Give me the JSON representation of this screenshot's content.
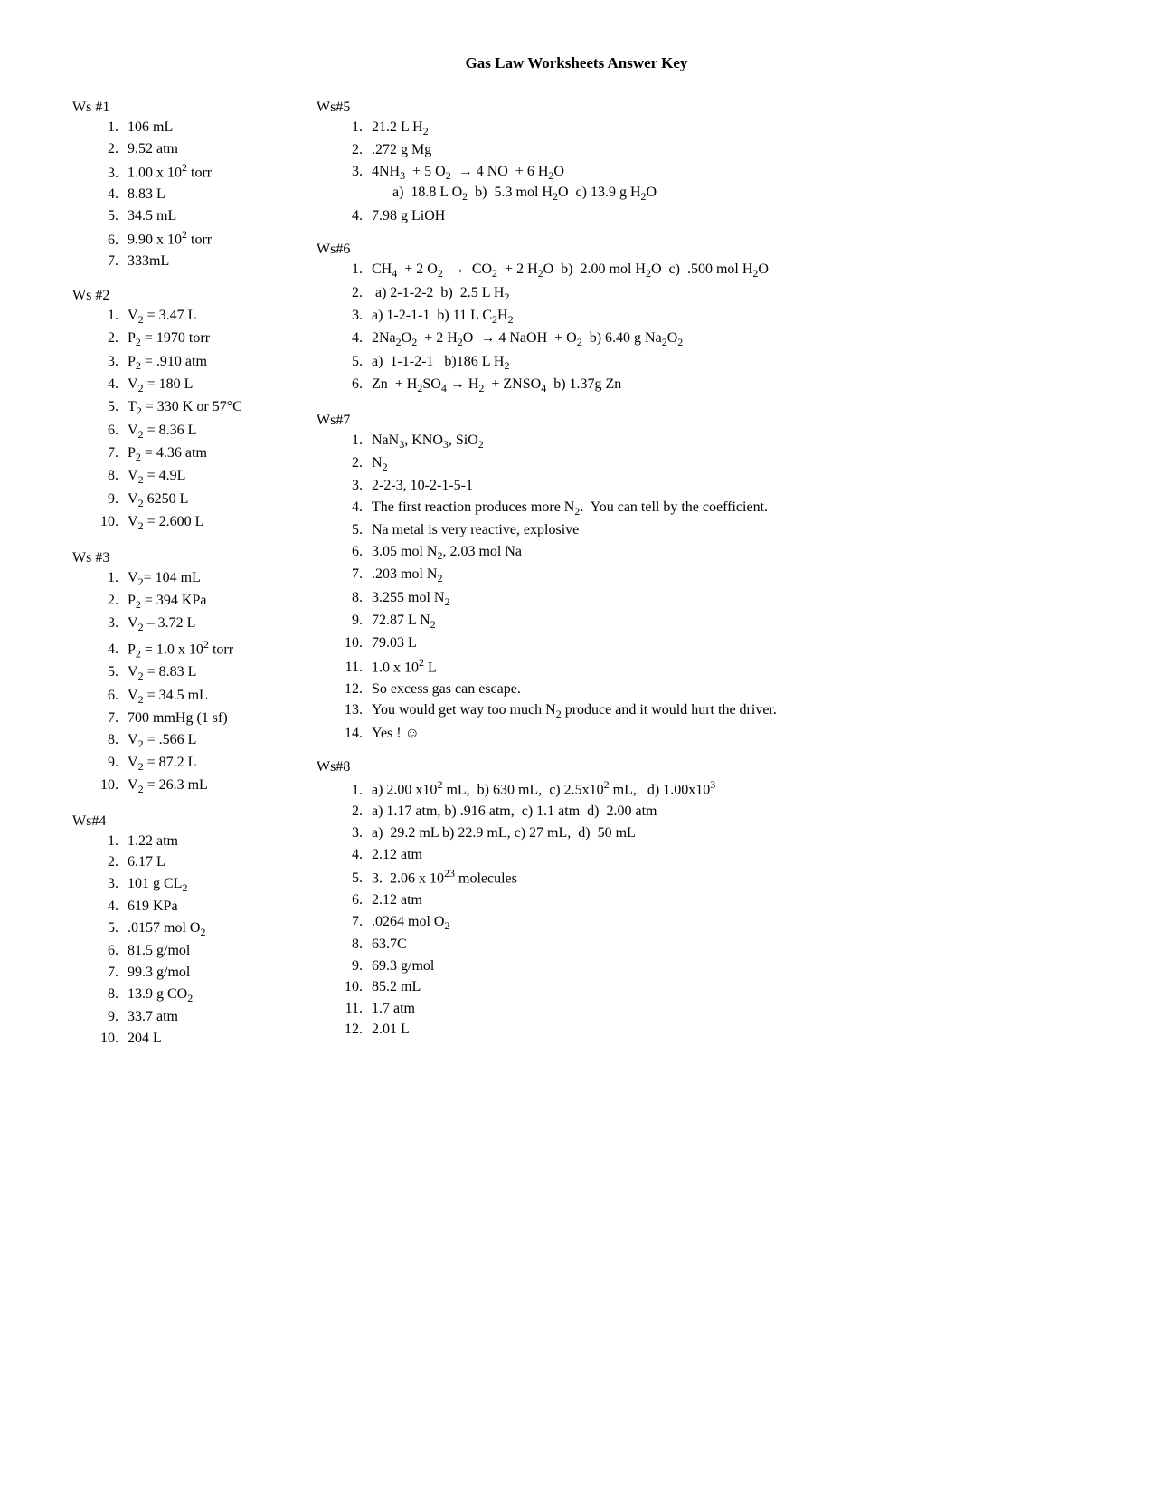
{
  "title": "Gas Law Worksheets Answer Key",
  "left_sections": [
    {
      "heading": "Ws #1",
      "items": [
        {
          "html": "106 mL"
        },
        {
          "html": "9.52 atm"
        },
        {
          "html": "1.00 x 10<sup>2</sup> torr"
        },
        {
          "html": "8.83 L"
        },
        {
          "html": "34.5 mL"
        },
        {
          "html": "9.90 x 10<sup>2</sup> torr"
        },
        {
          "html": "333mL"
        }
      ]
    },
    {
      "heading": "Ws #2",
      "items": [
        {
          "html": "V<sub>2</sub> = 3.47 L"
        },
        {
          "html": "P<sub>2</sub> = 1970 torr"
        },
        {
          "html": "P<sub>2</sub> = .910 atm"
        },
        {
          "html": "V<sub>2</sub> = 180 L"
        },
        {
          "html": "T<sub>2</sub> = 330 K or 57°C"
        },
        {
          "html": "V<sub>2</sub> = 8.36 L"
        },
        {
          "html": "P<sub>2</sub> = 4.36 atm"
        },
        {
          "html": "V<sub>2</sub> = 4.9L"
        },
        {
          "html": "V<sub>2</sub> 6250 L"
        },
        {
          "html": "V<sub>2</sub> = 2.600 L"
        }
      ]
    },
    {
      "heading": "Ws #3",
      "items": [
        {
          "html": "V<sub>2</sub>= 104 mL"
        },
        {
          "html": "P<sub>2</sub> = 394 KPa"
        },
        {
          "html": "V<sub>2</sub> – 3.72 L"
        },
        {
          "html": "P<sub>2</sub> = 1.0 x 10<sup>2</sup> torr"
        },
        {
          "html": "V<sub>2</sub> = 8.83 L"
        },
        {
          "html": "V<sub>2</sub> = 34.5 mL"
        },
        {
          "html": "700 mmHg (1 sf)"
        },
        {
          "html": "V<sub>2</sub> = .566 L"
        },
        {
          "html": "V<sub>2</sub> = 87.2 L"
        },
        {
          "html": "V<sub>2</sub> = 26.3 mL"
        }
      ]
    },
    {
      "heading": "Ws#4",
      "items": [
        {
          "html": "1.22 atm"
        },
        {
          "html": "6.17 L"
        },
        {
          "html": "101 g CL<sub>2</sub>"
        },
        {
          "html": "619 KPa"
        },
        {
          "html": ".0157 mol O<sub>2</sub>"
        },
        {
          "html": "81.5 g/mol"
        },
        {
          "html": "99.3 g/mol"
        },
        {
          "html": "13.9 g CO<sub>2</sub>"
        },
        {
          "html": "33.7 atm"
        },
        {
          "html": "204 L"
        }
      ]
    }
  ],
  "right_sections": [
    {
      "heading": "Ws#5",
      "items": [
        {
          "html": "21.2 L H<sub>2</sub>"
        },
        {
          "html": ".272 g Mg"
        },
        {
          "html": "4NH<sub>3</sub>&nbsp; + 5 O<sub>2</sub>&nbsp; → 4 NO&nbsp; + 6 H<sub>2</sub>O",
          "sub": "a)&nbsp; 18.8 L O<sub>2</sub>&nbsp; b)&nbsp; 5.3 mol H<sub>2</sub>O&nbsp; c) 13.9 g H<sub>2</sub>O"
        },
        {
          "html": "7.98 g LiOH"
        }
      ]
    },
    {
      "heading": "Ws#6",
      "items": [
        {
          "html": "CH<sub>4</sub>&nbsp; + 2 O<sub>2</sub>&nbsp; →&nbsp; CO<sub>2</sub>&nbsp; + 2 H<sub>2</sub>O&nbsp; b)&nbsp; 2.00 mol H<sub>2</sub>O&nbsp; c)&nbsp; .500 mol H<sub>2</sub>O"
        },
        {
          "html": "&nbsp;a) 2-1-2-2&nbsp; b)&nbsp; 2.5 L H<sub>2</sub>"
        },
        {
          "html": "a) 1-2-1-1&nbsp; b) 11 L C<sub>2</sub>H<sub>2</sub>"
        },
        {
          "html": "2Na<sub>2</sub>O<sub>2</sub>&nbsp; + 2 H<sub>2</sub>O&nbsp; → 4 NaOH&nbsp; + O<sub>2</sub>&nbsp; b) 6.40 g Na<sub>2</sub>O<sub>2</sub>"
        },
        {
          "html": "a)&nbsp; 1-1-2-1&nbsp;&nbsp; b)186 L H<sub>2</sub>"
        },
        {
          "html": "Zn&nbsp; + H<sub>2</sub>SO<sub>4</sub> → H<sub>2</sub>&nbsp; + ZNSO<sub>4</sub>&nbsp; b) 1.37g Zn"
        }
      ]
    },
    {
      "heading": "Ws#7",
      "items": [
        {
          "html": "NaN<sub>3</sub>, KNO<sub>3</sub>, SiO<sub>2</sub>"
        },
        {
          "html": "N<sub>2</sub>"
        },
        {
          "html": "2-2-3, 10-2-1-5-1"
        },
        {
          "html": "The first reaction produces more N<sub>2</sub>.&nbsp; You can tell by the coefficient."
        },
        {
          "html": "Na metal is very reactive, explosive"
        },
        {
          "html": "3.05 mol N<sub>2</sub>, 2.03 mol Na"
        },
        {
          "html": ".203 mol N<sub>2</sub>"
        },
        {
          "html": "3.255 mol N<sub>2</sub>"
        },
        {
          "html": "72.87 L N<sub>2</sub>"
        },
        {
          "html": "79.03 L"
        },
        {
          "html": "1.0 x 10<sup>2</sup> L"
        },
        {
          "html": "So excess gas can escape."
        },
        {
          "html": "You would get way too much N<sub>2</sub> produce and it would hurt the driver."
        },
        {
          "html": "Yes ! ☺"
        }
      ]
    },
    {
      "heading": "Ws#8",
      "items": [
        {
          "html": "a) 2.00 x10<sup>2</sup> mL,&nbsp; b) 630 mL,&nbsp; c) 2.5x10<sup>2</sup> mL,&nbsp;&nbsp; d) 1.00x10<sup>3</sup>"
        },
        {
          "html": "a) 1.17 atm, b) .916 atm,&nbsp; c) 1.1 atm&nbsp; d)&nbsp; 2.00 atm"
        },
        {
          "html": "a)&nbsp; 29.2 mL b) 22.9 mL, c) 27 mL,&nbsp; d)&nbsp; 50 mL"
        },
        {
          "html": "2.12 atm"
        },
        {
          "html": "3.&nbsp; 2.06 x 10<sup>23</sup> molecules"
        },
        {
          "html": "2.12 atm"
        },
        {
          "html": ".0264 mol O<sub>2</sub>"
        },
        {
          "html": "63.7C"
        },
        {
          "html": "69.3 g/mol"
        },
        {
          "html": "85.2 mL"
        },
        {
          "html": "1.7 atm"
        },
        {
          "html": "2.01 L"
        }
      ]
    }
  ]
}
